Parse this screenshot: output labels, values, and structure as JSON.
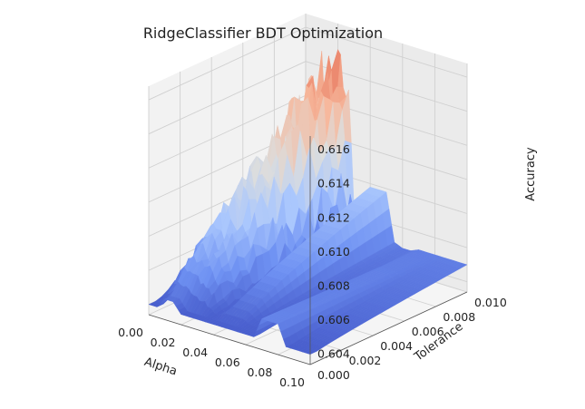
{
  "chart_data": {
    "type": "surface3d",
    "title": "RidgeClassifier BDT Optimization",
    "xlabel": "Alpha",
    "ylabel": "Tolerance",
    "zlabel": "Accuracy",
    "x_ticks": [
      "0.00",
      "0.02",
      "0.04",
      "0.06",
      "0.08",
      "0.10"
    ],
    "y_ticks": [
      "0.000",
      "0.002",
      "0.004",
      "0.006",
      "0.008",
      "0.010"
    ],
    "z_ticks": [
      "0.604",
      "0.606",
      "0.608",
      "0.610",
      "0.612",
      "0.614",
      "0.616"
    ],
    "xlim": [
      0.0,
      0.1
    ],
    "ylim": [
      0.0,
      0.01
    ],
    "zlim": [
      0.6034,
      0.6168
    ],
    "colormap": "coolwarm",
    "colormap_stops": [
      "#3b4cc0",
      "#6f92f3",
      "#aac7fd",
      "#dcdddd",
      "#f7b89c",
      "#e7745b",
      "#b40426"
    ],
    "surface_sample": {
      "alpha": [
        0.0,
        0.005,
        0.01,
        0.015,
        0.02,
        0.025,
        0.03,
        0.035,
        0.04,
        0.045,
        0.05,
        0.055,
        0.06,
        0.065,
        0.07,
        0.075,
        0.08,
        0.085,
        0.09,
        0.095,
        0.1
      ],
      "accuracy_at_tolerance_0": [
        0.604,
        0.604,
        0.6046,
        0.6046,
        0.604,
        0.604,
        0.604,
        0.604,
        0.604,
        0.604,
        0.604,
        0.604,
        0.604,
        0.604,
        0.6052,
        0.6052,
        0.6052,
        0.604,
        0.604,
        0.604,
        0.604
      ],
      "accuracy_at_tolerance_0.01_low": [
        0.6045,
        0.607,
        0.61,
        0.611,
        0.611,
        0.611,
        0.6055,
        0.6045,
        0.6078,
        0.6078,
        0.6078,
        0.605,
        0.6048,
        0.6048,
        0.605,
        0.605,
        0.605,
        0.605,
        0.605,
        0.605,
        0.605
      ],
      "accuracy_at_tolerance_0.01_high": [
        0.6095,
        0.613,
        0.615,
        0.6155,
        0.6162,
        0.615,
        0.6095,
        0.6045,
        0.6078,
        0.6078,
        0.6078,
        0.605,
        0.6048,
        0.6048,
        0.605,
        0.605,
        0.605,
        0.605,
        0.605,
        0.605,
        0.605
      ]
    }
  }
}
